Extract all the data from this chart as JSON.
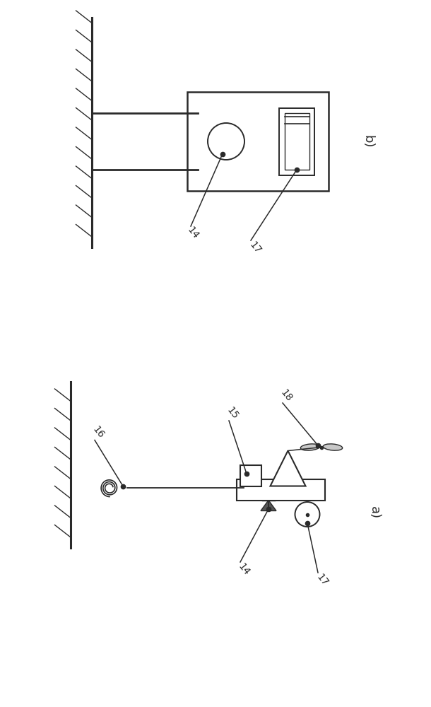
{
  "bg_color": "#ffffff",
  "line_color": "#2a2a2a",
  "panel_a_label": "a)",
  "panel_b_label": "b)",
  "label_14a": "14",
  "label_15": "15",
  "label_16": "16",
  "label_17a": "17",
  "label_18": "18",
  "label_14b": "14",
  "label_17b": "17",
  "fontsize": 10
}
